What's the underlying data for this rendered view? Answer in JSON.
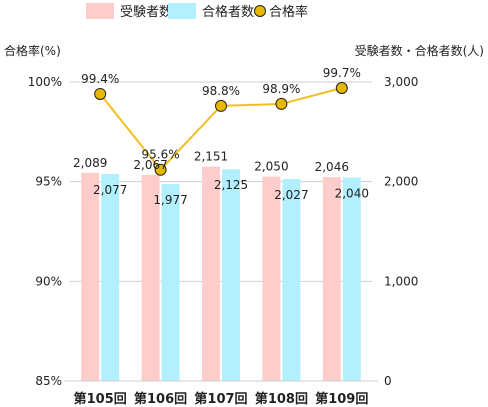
{
  "chart_data": {
    "type": "bar",
    "categories": [
      "第105回",
      "第106回",
      "第107回",
      "第108回",
      "第109回"
    ],
    "series": [
      {
        "name": "受験者数",
        "kind": "bar",
        "axis": "right",
        "color": "#ffcccc",
        "values": [
          2089,
          2067,
          2151,
          2050,
          2046
        ],
        "labels": [
          "2,089",
          "2,067",
          "2,151",
          "2,050",
          "2,046"
        ]
      },
      {
        "name": "合格者数",
        "kind": "bar",
        "axis": "right",
        "color": "#b3f0ff",
        "values": [
          2077,
          1977,
          2125,
          2027,
          2040
        ],
        "labels": [
          "2,077",
          "1,977",
          "2,125",
          "2,027",
          "2,040"
        ]
      },
      {
        "name": "合格率",
        "kind": "line",
        "axis": "left",
        "color": "#f0c020",
        "marker_color": "#e8b800",
        "values": [
          99.4,
          95.6,
          98.8,
          98.9,
          99.7
        ],
        "labels": [
          "99.4%",
          "95.6%",
          "98.8%",
          "98.9%",
          "99.7%"
        ]
      }
    ],
    "left_axis": {
      "title": "合格率(%)",
      "range": [
        85,
        100
      ],
      "ticks": [
        {
          "v": 85,
          "t": "85%"
        },
        {
          "v": 90,
          "t": "90%"
        },
        {
          "v": 95,
          "t": "95%"
        },
        {
          "v": 100,
          "t": "100%"
        }
      ]
    },
    "right_axis": {
      "title": "受験者数・合格者数(人)",
      "range": [
        0,
        3000
      ],
      "ticks": [
        {
          "v": 0,
          "t": "0"
        },
        {
          "v": 1000,
          "t": "1,000"
        },
        {
          "v": 2000,
          "t": "2,000"
        },
        {
          "v": 3000,
          "t": "3,000"
        }
      ]
    },
    "grid": true,
    "legend_position": "top"
  }
}
